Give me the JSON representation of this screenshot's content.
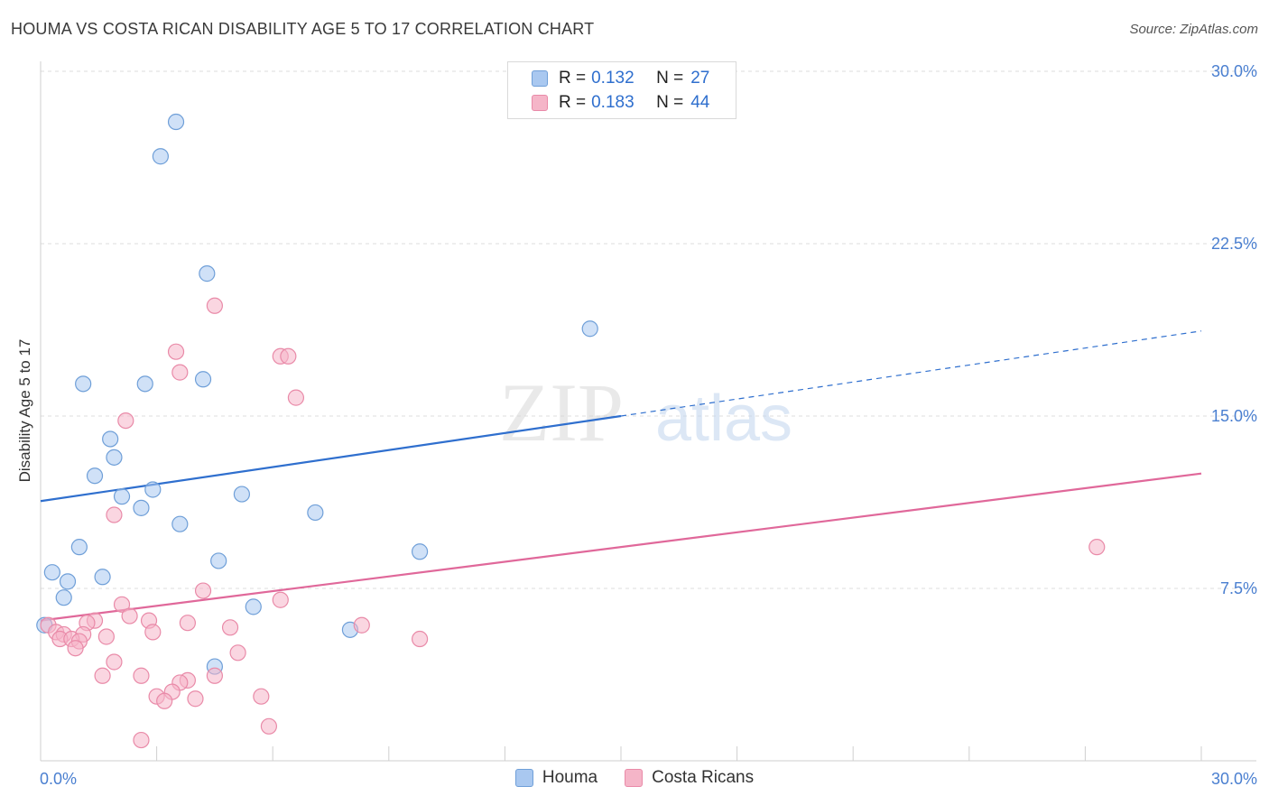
{
  "header": {
    "title": "HOUMA VS COSTA RICAN DISABILITY AGE 5 TO 17 CORRELATION CHART",
    "source": "Source: ZipAtlas.com"
  },
  "watermark": {
    "zip": "ZIP",
    "atlas": "atlas"
  },
  "legend": {
    "rows": [
      {
        "r_label": "R = ",
        "r_value": "0.132",
        "n_label": "N = ",
        "n_value": "27",
        "color": "#a9c8f0"
      },
      {
        "r_label": "R = ",
        "r_value": "0.183",
        "n_label": "N = ",
        "n_value": "44",
        "color": "#f5b5c8"
      }
    ]
  },
  "bottom_legend": [
    {
      "label": "Houma",
      "color": "#a9c8f0"
    },
    {
      "label": "Costa Ricans",
      "color": "#f5b5c8"
    }
  ],
  "chart_data": {
    "type": "scatter",
    "title": "HOUMA VS COSTA RICAN DISABILITY AGE 5 TO 17 CORRELATION CHART",
    "xlabel": "",
    "ylabel": "Disability Age 5 to 17",
    "xlim": [
      0,
      30
    ],
    "ylim": [
      0,
      30
    ],
    "x_tick_labels": [
      "0.0%",
      "30.0%"
    ],
    "y_ticks": [
      7.5,
      15.0,
      22.5,
      30.0
    ],
    "y_tick_labels": [
      "7.5%",
      "15.0%",
      "22.5%",
      "30.0%"
    ],
    "grid": true,
    "legend_position": "top-center",
    "series": [
      {
        "name": "Houma",
        "color": "#a9c8f0",
        "stroke": "#6f9fd8",
        "trend_color": "#2f6fce",
        "R": 0.132,
        "N": 27,
        "trend": {
          "x0": 0.0,
          "y0": 11.3,
          "x1": 15.0,
          "y1": 15.0,
          "dashed_to_x": 30.0,
          "dashed_to_y": 18.7
        },
        "points": [
          [
            3.5,
            27.8
          ],
          [
            3.1,
            26.3
          ],
          [
            4.3,
            21.2
          ],
          [
            14.2,
            18.8
          ],
          [
            1.1,
            16.4
          ],
          [
            2.7,
            16.4
          ],
          [
            4.2,
            16.6
          ],
          [
            1.8,
            14.0
          ],
          [
            1.9,
            13.2
          ],
          [
            1.4,
            12.4
          ],
          [
            2.9,
            11.8
          ],
          [
            2.1,
            11.5
          ],
          [
            5.2,
            11.6
          ],
          [
            2.6,
            11.0
          ],
          [
            7.1,
            10.8
          ],
          [
            3.6,
            10.3
          ],
          [
            1.0,
            9.3
          ],
          [
            9.8,
            9.1
          ],
          [
            4.6,
            8.7
          ],
          [
            0.3,
            8.2
          ],
          [
            1.6,
            8.0
          ],
          [
            0.7,
            7.8
          ],
          [
            0.6,
            7.1
          ],
          [
            5.5,
            6.7
          ],
          [
            8.0,
            5.7
          ],
          [
            4.5,
            4.1
          ],
          [
            0.1,
            5.9
          ]
        ]
      },
      {
        "name": "Costa Ricans",
        "color": "#f5b5c8",
        "stroke": "#e98aa8",
        "trend_color": "#e0689a",
        "R": 0.183,
        "N": 44,
        "trend": {
          "x0": 0.0,
          "y0": 6.1,
          "x1": 30.0,
          "y1": 12.5
        },
        "points": [
          [
            4.5,
            19.8
          ],
          [
            3.5,
            17.8
          ],
          [
            6.2,
            17.6
          ],
          [
            6.4,
            17.6
          ],
          [
            3.6,
            16.9
          ],
          [
            6.6,
            15.8
          ],
          [
            2.2,
            14.8
          ],
          [
            1.9,
            10.7
          ],
          [
            27.3,
            9.3
          ],
          [
            4.2,
            7.4
          ],
          [
            6.2,
            7.0
          ],
          [
            2.1,
            6.8
          ],
          [
            2.3,
            6.3
          ],
          [
            2.8,
            6.1
          ],
          [
            1.4,
            6.1
          ],
          [
            1.2,
            6.0
          ],
          [
            3.8,
            6.0
          ],
          [
            4.9,
            5.8
          ],
          [
            8.3,
            5.9
          ],
          [
            0.2,
            5.9
          ],
          [
            0.4,
            5.6
          ],
          [
            0.6,
            5.5
          ],
          [
            1.1,
            5.5
          ],
          [
            0.5,
            5.3
          ],
          [
            0.8,
            5.3
          ],
          [
            1.0,
            5.2
          ],
          [
            1.7,
            5.4
          ],
          [
            2.9,
            5.6
          ],
          [
            9.8,
            5.3
          ],
          [
            0.9,
            4.9
          ],
          [
            5.1,
            4.7
          ],
          [
            1.9,
            4.3
          ],
          [
            1.6,
            3.7
          ],
          [
            2.6,
            3.7
          ],
          [
            4.5,
            3.7
          ],
          [
            3.8,
            3.5
          ],
          [
            3.6,
            3.4
          ],
          [
            3.4,
            3.0
          ],
          [
            3.0,
            2.8
          ],
          [
            5.7,
            2.8
          ],
          [
            3.2,
            2.6
          ],
          [
            4.0,
            2.7
          ],
          [
            5.9,
            1.5
          ],
          [
            2.6,
            0.9
          ]
        ]
      }
    ]
  }
}
